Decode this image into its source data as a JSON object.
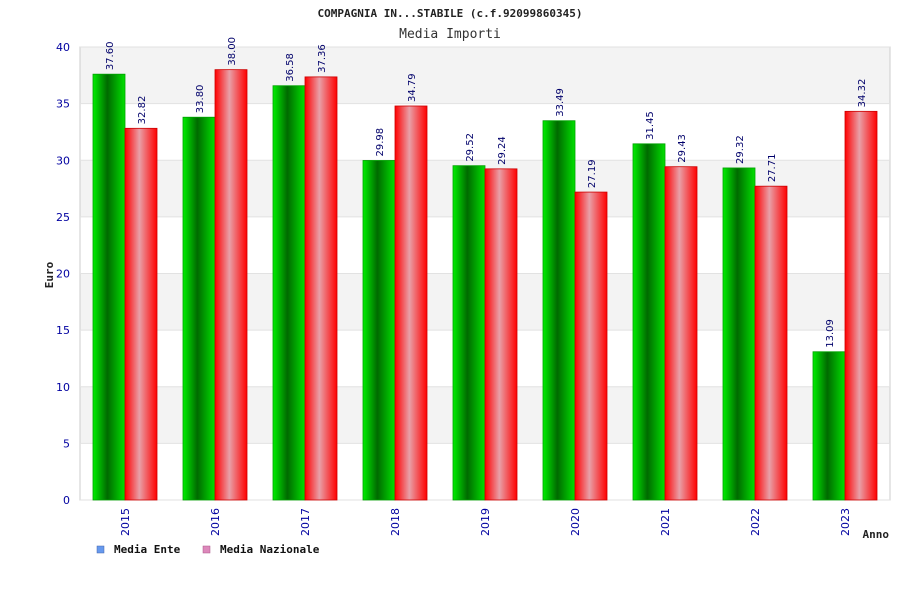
{
  "chart_data": {
    "type": "bar",
    "title": "COMPAGNIA IN...STABILE (c.f.92099860345)",
    "subtitle": "Media Importi",
    "xlabel": "Anno",
    "ylabel": "Euro",
    "categories": [
      "2015",
      "2016",
      "2017",
      "2018",
      "2019",
      "2020",
      "2021",
      "2022",
      "2023"
    ],
    "series": [
      {
        "name": "Media Ente",
        "values": [
          37.6,
          33.8,
          36.58,
          29.98,
          29.52,
          33.49,
          31.45,
          29.32,
          13.09
        ],
        "labels": [
          "37.60",
          "33.80",
          "36.58",
          "29.98",
          "29.52",
          "33.49",
          "31.45",
          "29.32",
          "13.09"
        ],
        "color": "#00bb00",
        "legend_color": "#6699ee"
      },
      {
        "name": "Media Nazionale",
        "values": [
          32.82,
          38.0,
          37.36,
          34.79,
          29.24,
          27.19,
          29.43,
          27.71,
          34.32
        ],
        "labels": [
          "32.82",
          "38.00",
          "37.36",
          "34.79",
          "29.24",
          "27.19",
          "29.43",
          "27.71",
          "34.32"
        ],
        "color": "#ee1111",
        "legend_color": "#dd88bb"
      }
    ],
    "ylim": [
      0,
      40
    ],
    "yticks": [
      "0",
      "5",
      "10",
      "15",
      "20",
      "25",
      "30",
      "35",
      "40"
    ],
    "grid": true,
    "legend_position": "bottom-left"
  }
}
